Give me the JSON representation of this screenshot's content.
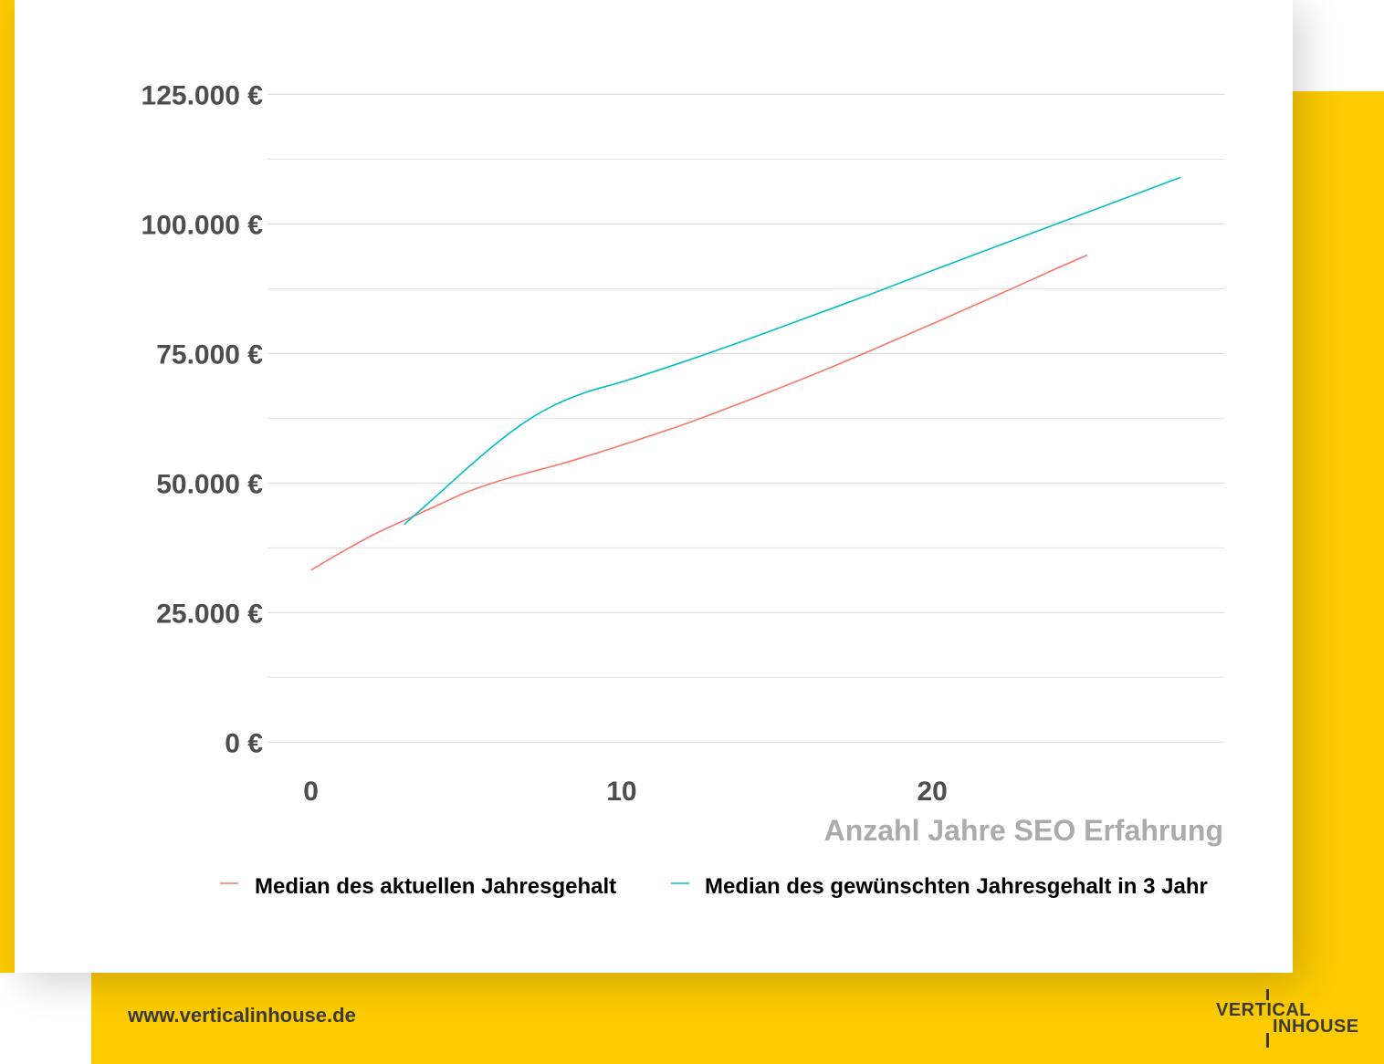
{
  "colors": {
    "accent_yellow": "#fdcb00",
    "series_current": "#f8766d",
    "series_desired": "#00bfc4",
    "grid": "#e3e3e3",
    "tick_text": "#4d4d4d",
    "xlabel_text": "#ababab"
  },
  "footer": {
    "url": "www.verticalinhouse.de",
    "logo_line1": "VERTICAL",
    "logo_line2": "INHOUSE"
  },
  "chart_data": {
    "type": "line",
    "xlabel": "Anzahl Jahre SEO Erfahrung",
    "ylabel": "",
    "xlim": [
      -1.4,
      29.4
    ],
    "ylim": [
      -4000,
      130000
    ],
    "x_ticks": [
      0,
      10,
      20
    ],
    "y_ticks": [
      0,
      25000,
      50000,
      75000,
      100000,
      125000
    ],
    "y_tick_labels": [
      "0 €",
      "25.000 €",
      "50.000 €",
      "75.000 €",
      "100.000 €",
      "125.000 €"
    ],
    "grid": true,
    "legend_position": "bottom",
    "series": [
      {
        "name": "Median des aktuellen Jahresgehalt",
        "x": [
          0,
          1,
          2,
          3,
          4,
          5,
          6,
          7,
          8,
          9,
          10,
          12,
          14,
          16,
          18,
          20,
          22,
          24,
          25
        ],
        "y": [
          33200,
          36700,
          40000,
          42800,
          45500,
          48200,
          50300,
          52000,
          53600,
          55400,
          57300,
          61300,
          65800,
          70500,
          75500,
          80700,
          86000,
          91400,
          94000
        ]
      },
      {
        "name": "Median des gewünschten Jahresgehalt in 3 Jahr",
        "x": [
          3,
          4,
          5,
          6,
          7,
          8,
          9,
          10,
          12,
          14,
          16,
          18,
          20,
          22,
          24,
          26,
          28
        ],
        "y": [
          42000,
          47300,
          52700,
          57800,
          62200,
          65500,
          67800,
          69500,
          73400,
          77600,
          82000,
          86400,
          91000,
          95500,
          100000,
          104500,
          109000
        ]
      }
    ]
  }
}
